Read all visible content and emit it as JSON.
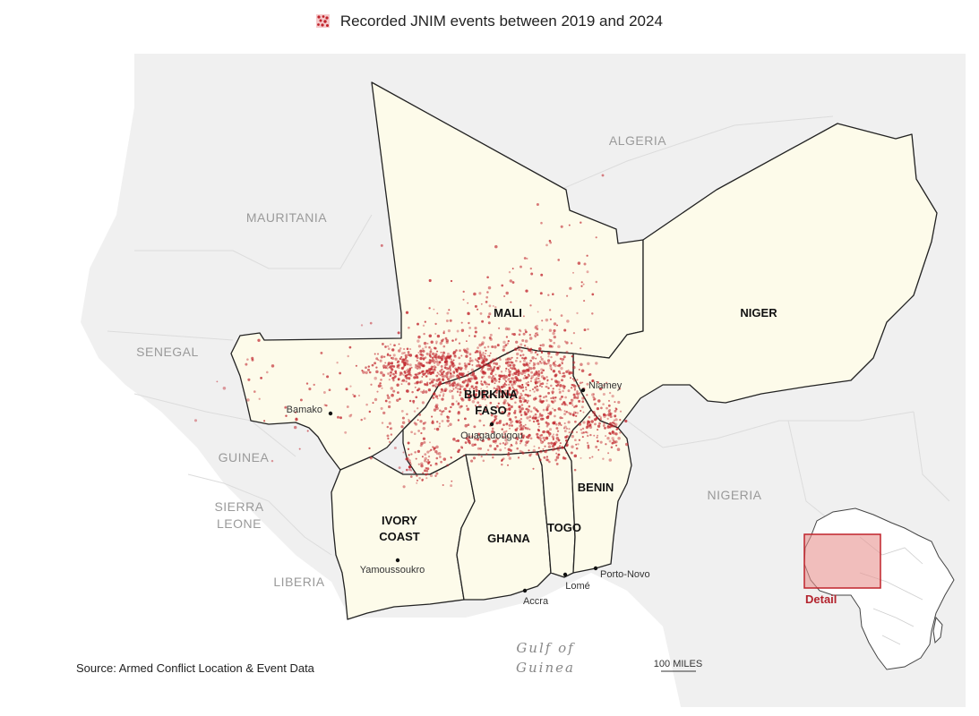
{
  "legend": {
    "label": "Recorded JNIM events between 2019 and 2024",
    "color": "#c0232b"
  },
  "source": "Source: Armed Conflict Location & Event Data",
  "colors": {
    "land_outside": "#f0f0f0",
    "land_study": "#fdfbea",
    "border": "#222222",
    "event": "#c0232b",
    "detail_box": "#c0232b"
  },
  "outside_countries": [
    {
      "key": "algeria",
      "label": "ALGERIA"
    },
    {
      "key": "mauritania",
      "label": "MAURITANIA"
    },
    {
      "key": "senegal",
      "label": "SENEGAL"
    },
    {
      "key": "guinea",
      "label": "GUINEA"
    },
    {
      "key": "sierra",
      "label": "SIERRA"
    },
    {
      "key": "leone",
      "label": "LEONE"
    },
    {
      "key": "liberia",
      "label": "LIBERIA"
    },
    {
      "key": "nigeria",
      "label": "NIGERIA"
    }
  ],
  "countries": [
    {
      "key": "mali",
      "label": "MALI"
    },
    {
      "key": "niger",
      "label": "NIGER"
    },
    {
      "key": "burkina1",
      "label": "BURKINA"
    },
    {
      "key": "burkina2",
      "label": "FASO"
    },
    {
      "key": "ivory1",
      "label": "IVORY"
    },
    {
      "key": "ivory2",
      "label": "COAST"
    },
    {
      "key": "ghana",
      "label": "GHANA"
    },
    {
      "key": "togo",
      "label": "TOGO"
    },
    {
      "key": "benin",
      "label": "BENIN"
    }
  ],
  "cities": [
    {
      "key": "bamako",
      "label": "Bamako"
    },
    {
      "key": "niamey",
      "label": "Niamey"
    },
    {
      "key": "ouagadougou",
      "label": "Ouagadougou"
    },
    {
      "key": "yamoussoukro",
      "label": "Yamoussoukro"
    },
    {
      "key": "accra",
      "label": "Accra"
    },
    {
      "key": "lome",
      "label": "Lomé"
    },
    {
      "key": "portonovo",
      "label": "Porto-Novo"
    }
  ],
  "sea": {
    "line1": "Gulf of",
    "line2": "Guinea"
  },
  "scale": {
    "label": "100 MILES"
  },
  "inset": {
    "label": "Detail"
  }
}
